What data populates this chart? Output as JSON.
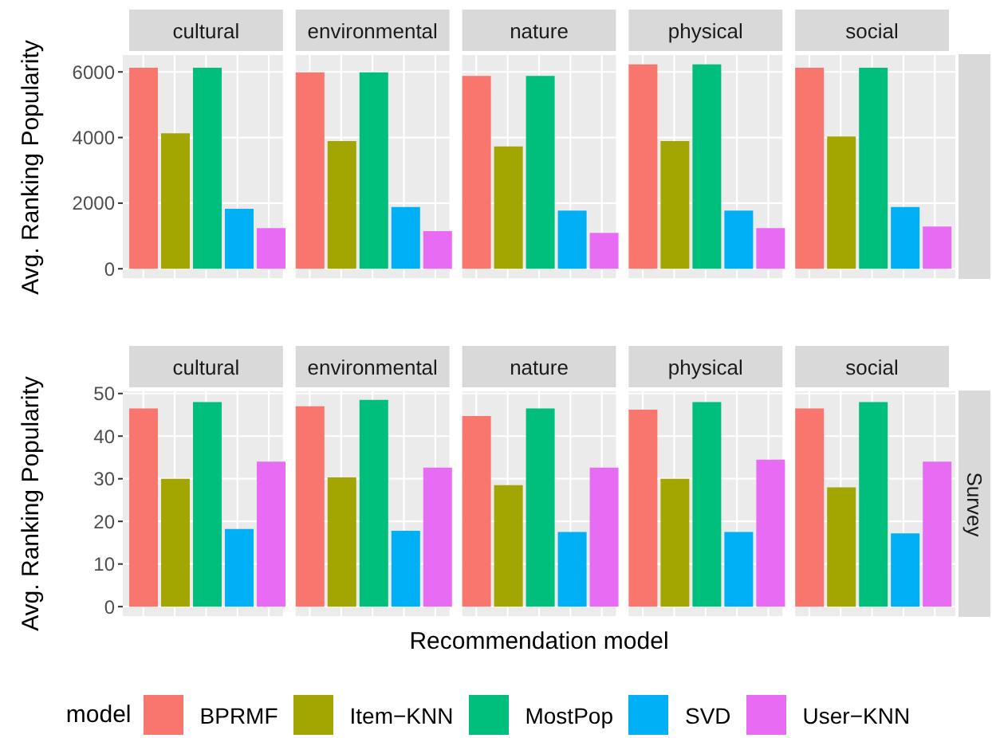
{
  "chart_data": [
    {
      "type": "bar",
      "ylabel": "Avg. Ranking Popularity",
      "categories": [
        "cultural",
        "environmental",
        "nature",
        "physical",
        "social"
      ],
      "series": [
        {
          "name": "BPRMF",
          "color": "#f8766d",
          "values": [
            6130,
            5990,
            5880,
            6230,
            6130
          ]
        },
        {
          "name": "Item−KNN",
          "color": "#a3a500",
          "values": [
            4130,
            3890,
            3730,
            3890,
            4030
          ]
        },
        {
          "name": "MostPop",
          "color": "#00bf7d",
          "values": [
            6130,
            5990,
            5880,
            6230,
            6130
          ]
        },
        {
          "name": "SVD",
          "color": "#00b0f6",
          "values": [
            1830,
            1880,
            1770,
            1770,
            1880
          ]
        },
        {
          "name": "User−KNN",
          "color": "#e76bf3",
          "values": [
            1240,
            1150,
            1090,
            1240,
            1290
          ]
        }
      ],
      "ylim": [
        -310,
        6540
      ],
      "yticks": [
        0,
        2000,
        4000,
        6000
      ],
      "grid": true,
      "legend": "bottom",
      "legend_title": "model"
    },
    {
      "type": "bar",
      "ylabel": "Avg. Ranking Popularity",
      "xlabel": "Recommendation model",
      "annotations": [
        "Survey"
      ],
      "categories": [
        "cultural",
        "environmental",
        "nature",
        "physical",
        "social"
      ],
      "series": [
        {
          "color": "#f8766d",
          "values": [
            46.5,
            47,
            44.7,
            46.2,
            46.5
          ]
        },
        {
          "color": "#a3a500",
          "values": [
            30,
            30.3,
            28.5,
            30,
            28
          ]
        },
        {
          "color": "#00bf7d",
          "values": [
            48,
            48.5,
            46.5,
            48,
            48
          ]
        },
        {
          "color": "#00b0f6",
          "values": [
            18.2,
            17.8,
            17.5,
            17.5,
            17.2
          ]
        },
        {
          "color": "#e76bf3",
          "values": [
            34,
            32.6,
            32.6,
            34.5,
            34
          ]
        }
      ],
      "ylim": [
        -2.4,
        50.7
      ],
      "yticks": [
        0,
        10,
        20,
        30,
        40,
        50
      ],
      "grid": true
    }
  ]
}
